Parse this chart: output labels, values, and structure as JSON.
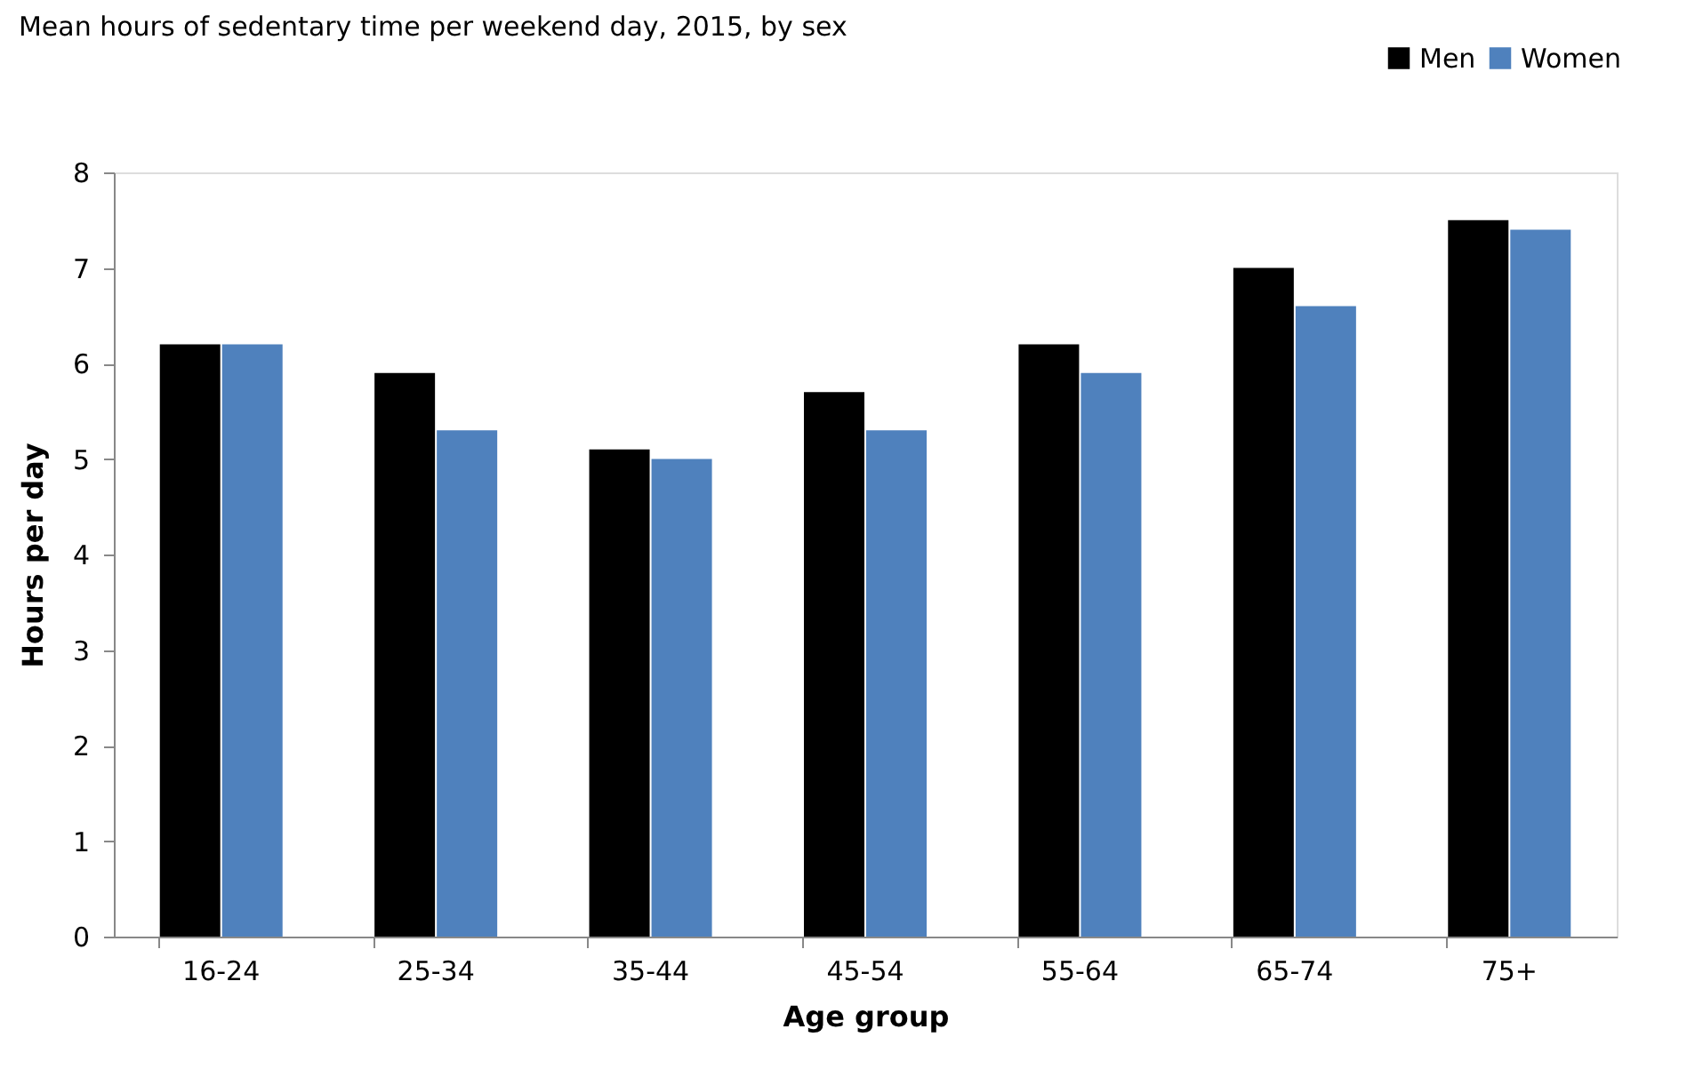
{
  "chart_data": {
    "type": "bar",
    "title": "Mean hours of sedentary time per weekend day, 2015, by sex",
    "xlabel": "Age group",
    "ylabel": "Hours per day",
    "categories": [
      "16-24",
      "25-34",
      "35-44",
      "45-54",
      "55-64",
      "65-74",
      "75+"
    ],
    "series": [
      {
        "name": "Men",
        "color": "#000000",
        "values": [
          6.2,
          5.9,
          5.1,
          5.7,
          6.2,
          7.0,
          7.5
        ]
      },
      {
        "name": "Women",
        "color": "#4f81bd",
        "values": [
          6.2,
          5.3,
          5.0,
          5.3,
          5.9,
          6.6,
          7.4
        ]
      }
    ],
    "ylim": [
      0,
      8
    ],
    "yticks": [
      0,
      1,
      2,
      3,
      4,
      5,
      6,
      7,
      8
    ],
    "grid": false,
    "legend": "top right"
  }
}
